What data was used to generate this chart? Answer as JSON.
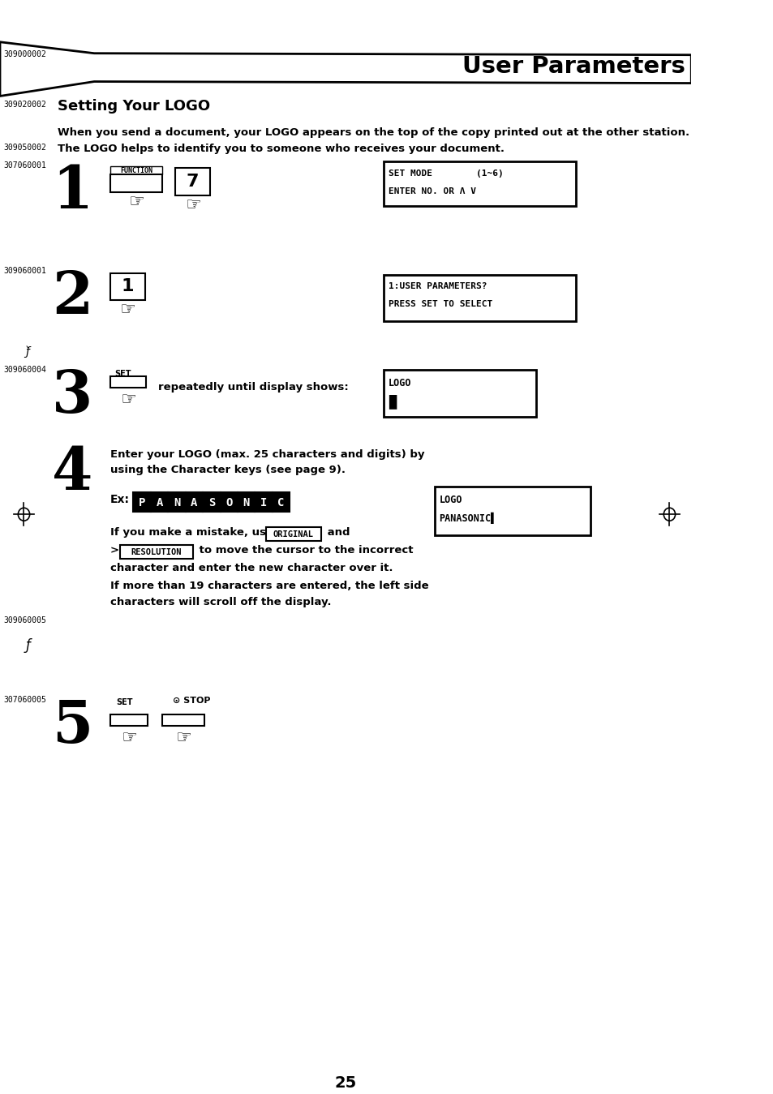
{
  "bg_color": "#ffffff",
  "title_bar_text": "User Parameters",
  "title_bar_code": "309000002",
  "section_code": "309020002",
  "section_title": "Setting Your LOGO",
  "para1": "When you send a document, your LOGO appears on the top of the copy printed out at the other station.",
  "para2_code": "309050002",
  "para2": "The LOGO helps to identify you to someone who receives your document.",
  "step1_code": "307060001",
  "step2_code": "309060001",
  "step3_code": "309060004",
  "step5_code": "307060005",
  "step5_code2": "309060005",
  "display1_line1": "SET MODE        (1~6)",
  "display1_line2": "ENTER NO. OR Λ V",
  "display2_line1": "1:USER PARAMETERS?",
  "display2_line2": "PRESS SET TO SELECT",
  "display3_line1": "LOGO",
  "display4_line1": "LOGO",
  "display4_line2": "PANASONIC▌",
  "step3_text": "repeatedly until display shows:",
  "step4_text1": "Enter your LOGO (max. 25 characters and digits) by",
  "step4_text2": "using the Character keys (see page 9).",
  "step4_panasonic": "PANASONIC",
  "page_number": "25"
}
